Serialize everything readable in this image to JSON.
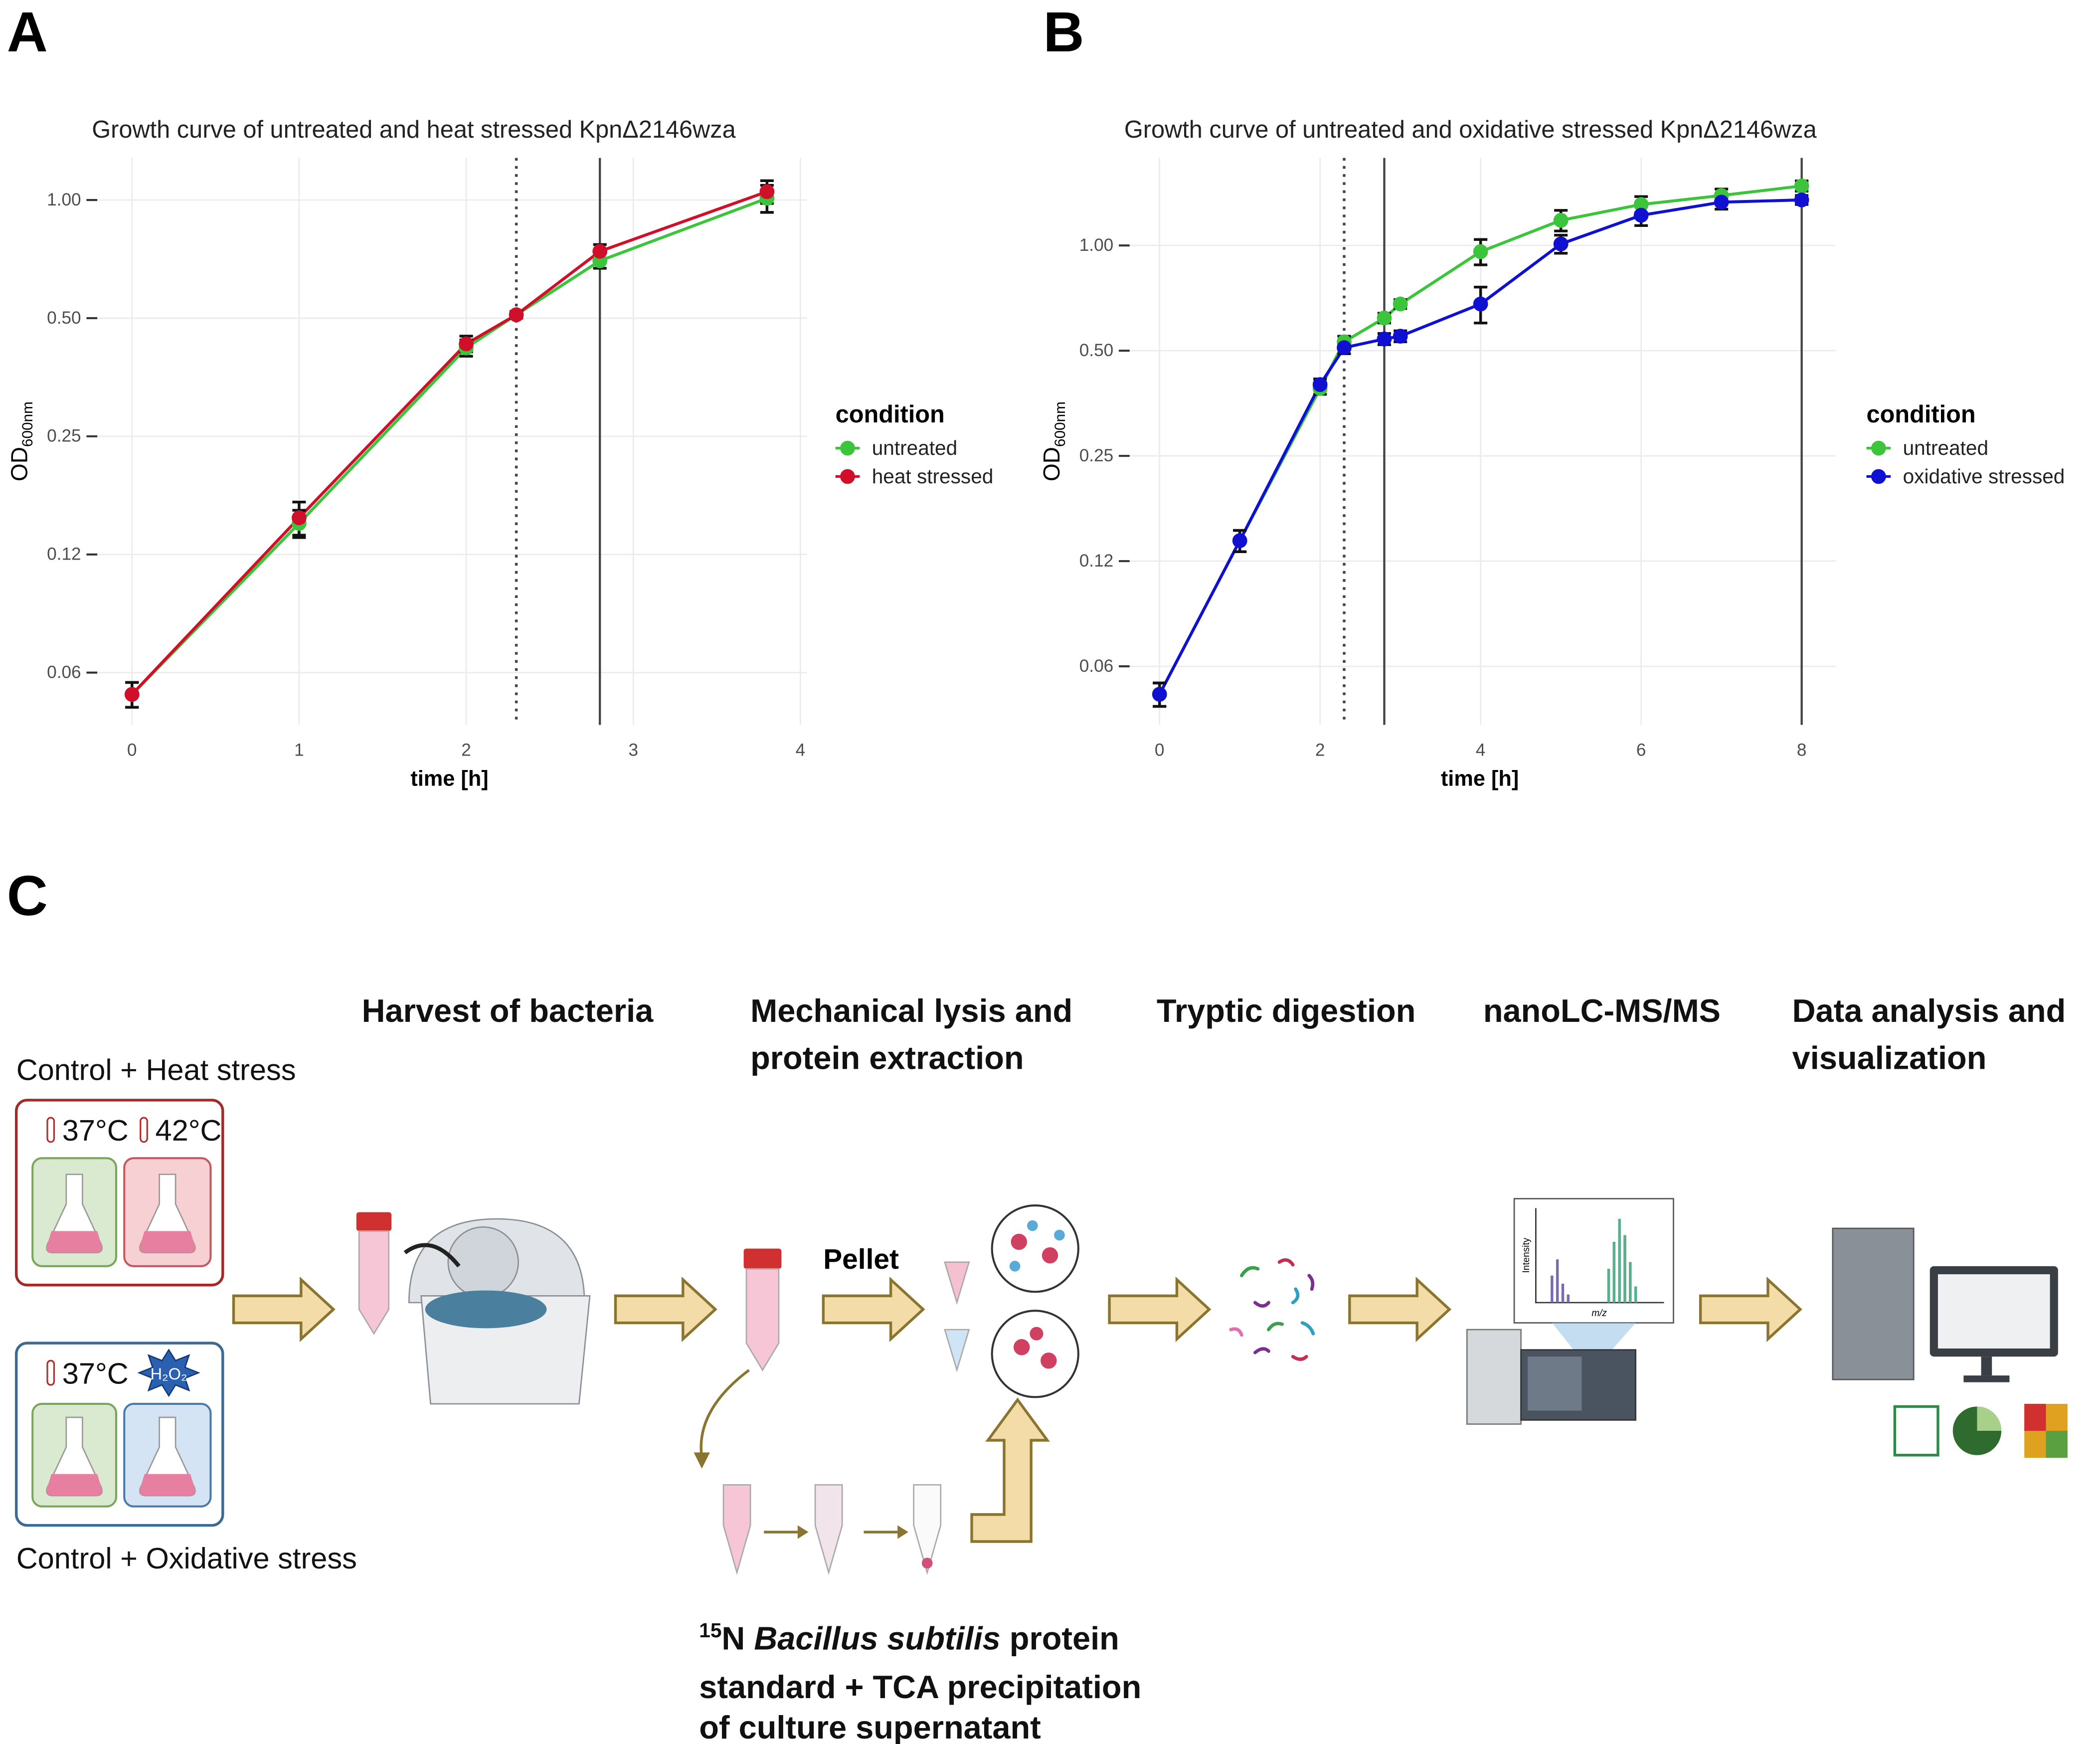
{
  "panel_labels": [
    "A",
    "B",
    "C"
  ],
  "chart_data": [
    {
      "type": "line",
      "title": "Growth curve of untreated and heat stressed KpnΔ2146wza",
      "xlabel": "time [h]",
      "ylabel": "OD",
      "ylabel_subscript": "600nm",
      "x": [
        0,
        1,
        2,
        2.3,
        2.8,
        3.8
      ],
      "series": [
        {
          "name": "untreated",
          "color": "#3dc43d",
          "values": [
            0.055,
            0.15,
            0.42,
            0.51,
            0.7,
            1.01
          ],
          "errors": [
            0.004,
            0.012,
            0.02,
            0.01,
            0.03,
            0.08
          ]
        },
        {
          "name": "heat stressed",
          "color": "#d0102a",
          "values": [
            0.055,
            0.155,
            0.43,
            0.51,
            0.74,
            1.05
          ],
          "errors": [
            0.004,
            0.015,
            0.02,
            0.01,
            0.03,
            0.07
          ]
        }
      ],
      "xlim": [
        -0.24,
        4.04
      ],
      "xticks": [
        0,
        1,
        2,
        3,
        4
      ],
      "ylim": [
        0.046,
        1.28
      ],
      "log_y": true,
      "yticks": [
        {
          "value": 0.0625,
          "label": "0.06"
        },
        {
          "value": 0.125,
          "label": "0.12"
        },
        0.25,
        {
          "value": 0.5,
          "label": "0.50"
        },
        {
          "value": 1,
          "label": "1.00"
        }
      ],
      "grid": true,
      "legend_title": "condition",
      "legend": "right",
      "vlines": [
        {
          "x": 2.3,
          "style": "dotted"
        },
        {
          "x": 2.8,
          "style": "solid"
        }
      ]
    },
    {
      "type": "line",
      "title": "Growth curve of untreated and oxidative stressed KpnΔ2146wza",
      "xlabel": "time [h]",
      "ylabel": "OD",
      "ylabel_subscript": "600nm",
      "x": [
        0,
        1,
        2,
        2.3,
        2.8,
        3,
        4,
        5,
        6,
        7,
        8
      ],
      "series": [
        {
          "name": "untreated",
          "color": "#3dc43d",
          "values": [
            0.052,
            0.143,
            0.39,
            0.53,
            0.62,
            0.68,
            0.96,
            1.18,
            1.31,
            1.39,
            1.48
          ],
          "errors": [
            0.004,
            0.01,
            0.015,
            0.02,
            0.02,
            0.02,
            0.08,
            0.08,
            0.07,
            0.06,
            0.05
          ]
        },
        {
          "name": "oxidative stressed",
          "color": "#1010d0",
          "values": [
            0.052,
            0.143,
            0.4,
            0.51,
            0.54,
            0.55,
            0.68,
            1.01,
            1.22,
            1.33,
            1.35
          ],
          "errors": [
            0.004,
            0.01,
            0.015,
            0.02,
            0.02,
            0.02,
            0.08,
            0.06,
            0.08,
            0.06,
            0.04
          ]
        }
      ],
      "xlim": [
        -0.44,
        8.42
      ],
      "xticks": [
        0,
        2,
        4,
        6,
        8
      ],
      "ylim": [
        0.0425,
        1.78
      ],
      "log_y": true,
      "yticks": [
        {
          "value": 0.0625,
          "label": "0.06"
        },
        {
          "value": 0.125,
          "label": "0.12"
        },
        0.25,
        {
          "value": 0.5,
          "label": "0.50"
        },
        {
          "value": 1,
          "label": "1.00"
        }
      ],
      "grid": true,
      "legend_title": "condition",
      "legend": "right",
      "vlines": [
        {
          "x": 2.3,
          "style": "dotted"
        },
        {
          "x": 2.8,
          "style": "solid"
        },
        {
          "x": 8,
          "style": "solid"
        }
      ]
    }
  ],
  "workflow": {
    "steps": [
      [
        "Harvest of bacteria"
      ],
      [
        "Mechanical lysis and",
        "protein extraction"
      ],
      [
        "Tryptic digestion"
      ],
      [
        "nanoLC-MS/MS"
      ],
      [
        "Data analysis and",
        "visualization"
      ]
    ],
    "heat_group": {
      "label": "Control + Heat stress",
      "temps": [
        "37°C",
        "42°C"
      ]
    },
    "oxidative_group": {
      "label": "Control + Oxidative stress",
      "temp": "37°C",
      "agent": "H₂O₂"
    },
    "pellet": "Pellet",
    "spectrum_axes": {
      "y": "Intensity",
      "x": "m/z"
    },
    "standard": {
      "superscript": "15",
      "line1": [
        "N ",
        "Bacillus subtilis",
        " protein"
      ],
      "lines": [
        "standard + TCA precipitation",
        "of culture supernatant"
      ]
    }
  }
}
